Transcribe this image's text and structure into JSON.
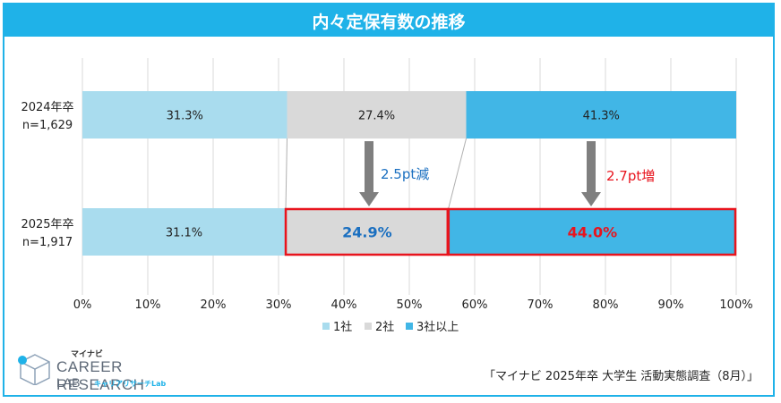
{
  "title": "内々定保有数の推移",
  "source": "「マイナビ 2025年卒 大学生 活動実態調査（8月）」",
  "logo": {
    "top_text": "マイナビ",
    "line1": "CAREER RESEARCH",
    "line2": "LAB",
    "kana": "キャリアリサーチLab"
  },
  "colors": {
    "s1": "#a9dcee",
    "s2": "#d9d9d9",
    "s3": "#41b6e6",
    "highlight": "#e8141d",
    "decrease_text": "#1a6fc0",
    "increase_text": "#e8141d",
    "arrow": "#7f7f7f"
  },
  "annotations": {
    "decrease": "2.5pt減",
    "increase": "2.7pt増"
  },
  "chart_data": {
    "type": "bar",
    "orientation": "horizontal-stacked-100",
    "categories": [
      {
        "year": "2024年卒",
        "n": "n=1,629"
      },
      {
        "year": "2025年卒",
        "n": "n=1,917"
      }
    ],
    "series": [
      {
        "name": "1社",
        "values": [
          31.3,
          31.1
        ],
        "labels": [
          "31.3%",
          "31.1%"
        ]
      },
      {
        "name": "2社",
        "values": [
          27.4,
          24.9
        ],
        "labels": [
          "27.4%",
          "24.9%"
        ]
      },
      {
        "name": "3社以上",
        "values": [
          41.3,
          44.0
        ],
        "labels": [
          "41.3%",
          "44.0%"
        ]
      }
    ],
    "xlim": [
      0,
      100
    ],
    "xticks": [
      "0%",
      "10%",
      "20%",
      "30%",
      "40%",
      "50%",
      "60%",
      "70%",
      "80%",
      "90%",
      "100%"
    ],
    "grid": true,
    "legend": "bottom"
  }
}
